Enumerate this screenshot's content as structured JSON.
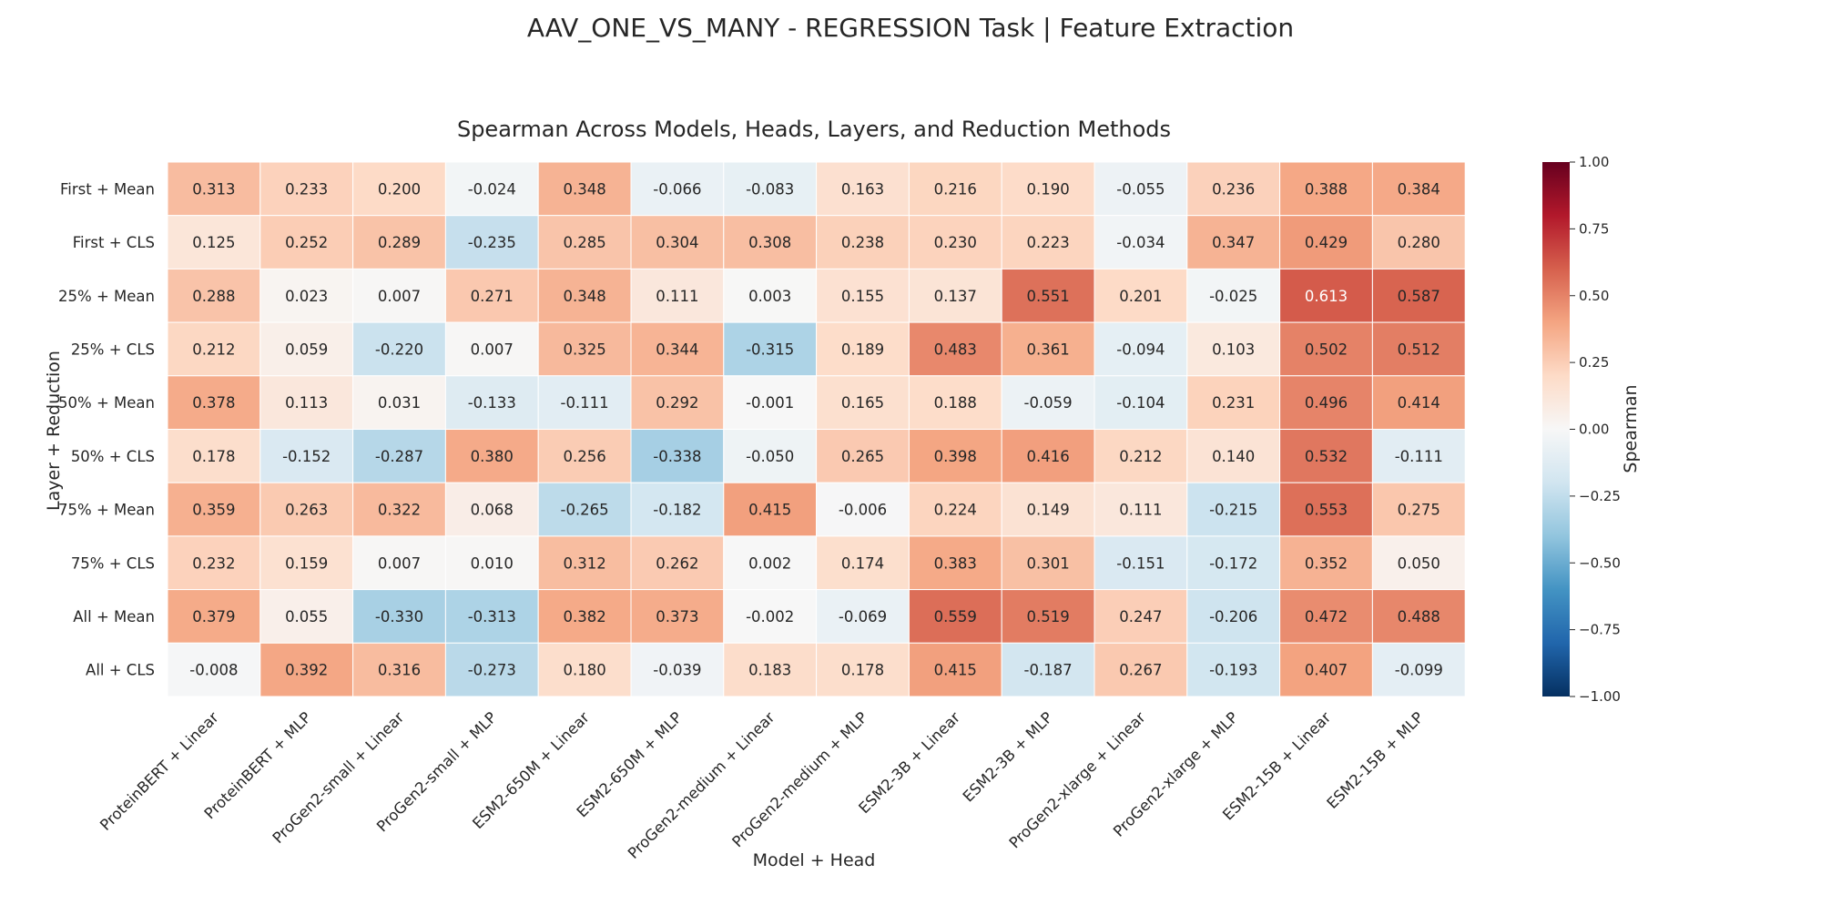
{
  "figure": {
    "suptitle": "AAV_ONE_VS_MANY - REGRESSION Task | Feature Extraction"
  },
  "chart_data": {
    "type": "heatmap",
    "title": "Spearman Across Models, Heads, Layers, and Reduction Methods",
    "xlabel": "Model + Head",
    "ylabel": "Layer + Reduction",
    "colorbar_label": "Spearman",
    "colormap": "RdBu_r",
    "vmin": -1.0,
    "vmax": 1.0,
    "colorbar_ticks": [
      "1.00",
      "0.75",
      "0.50",
      "0.25",
      "0.00",
      "−0.25",
      "−0.50",
      "−0.75",
      "−1.00"
    ],
    "colorbar_tick_values": [
      1.0,
      0.75,
      0.5,
      0.25,
      0.0,
      -0.25,
      -0.5,
      -0.75,
      -1.0
    ],
    "columns": [
      "ProteinBERT + Linear",
      "ProteinBERT + MLP",
      "ProGen2-small + Linear",
      "ProGen2-small + MLP",
      "ESM2-650M + Linear",
      "ESM2-650M + MLP",
      "ProGen2-medium + Linear",
      "ProGen2-medium + MLP",
      "ESM2-3B + Linear",
      "ESM2-3B + MLP",
      "ProGen2-xlarge + Linear",
      "ProGen2-xlarge + MLP",
      "ESM2-15B + Linear",
      "ESM2-15B + MLP"
    ],
    "rows": [
      "First + Mean",
      "First + CLS",
      "25% + Mean",
      "25% + CLS",
      "50% + Mean",
      "50% + CLS",
      "75% + Mean",
      "75% + CLS",
      "All + Mean",
      "All + CLS"
    ],
    "values": [
      [
        0.313,
        0.233,
        0.2,
        -0.024,
        0.348,
        -0.066,
        -0.083,
        0.163,
        0.216,
        0.19,
        -0.055,
        0.236,
        0.388,
        0.384
      ],
      [
        0.125,
        0.252,
        0.289,
        -0.235,
        0.285,
        0.304,
        0.308,
        0.238,
        0.23,
        0.223,
        -0.034,
        0.347,
        0.429,
        0.28
      ],
      [
        0.288,
        0.023,
        0.007,
        0.271,
        0.348,
        0.111,
        0.003,
        0.155,
        0.137,
        0.551,
        0.201,
        -0.025,
        0.613,
        0.587
      ],
      [
        0.212,
        0.059,
        -0.22,
        0.007,
        0.325,
        0.344,
        -0.315,
        0.189,
        0.483,
        0.361,
        -0.094,
        0.103,
        0.502,
        0.512
      ],
      [
        0.378,
        0.113,
        0.031,
        -0.133,
        -0.111,
        0.292,
        -0.001,
        0.165,
        0.188,
        -0.059,
        -0.104,
        0.231,
        0.496,
        0.414
      ],
      [
        0.178,
        -0.152,
        -0.287,
        0.38,
        0.256,
        -0.338,
        -0.05,
        0.265,
        0.398,
        0.416,
        0.212,
        0.14,
        0.532,
        -0.111
      ],
      [
        0.359,
        0.263,
        0.322,
        0.068,
        -0.265,
        -0.182,
        0.415,
        -0.006,
        0.224,
        0.149,
        0.111,
        -0.215,
        0.553,
        0.275
      ],
      [
        0.232,
        0.159,
        0.007,
        0.01,
        0.312,
        0.262,
        0.002,
        0.174,
        0.383,
        0.301,
        -0.151,
        -0.172,
        0.352,
        0.05
      ],
      [
        0.379,
        0.055,
        -0.33,
        -0.313,
        0.382,
        0.373,
        -0.002,
        -0.069,
        0.559,
        0.519,
        0.247,
        -0.206,
        0.472,
        0.488
      ],
      [
        -0.008,
        0.392,
        0.316,
        -0.273,
        0.18,
        -0.039,
        0.183,
        0.178,
        0.415,
        -0.187,
        0.267,
        -0.193,
        0.407,
        -0.099
      ]
    ],
    "cell_label_format": "3 decimals"
  }
}
